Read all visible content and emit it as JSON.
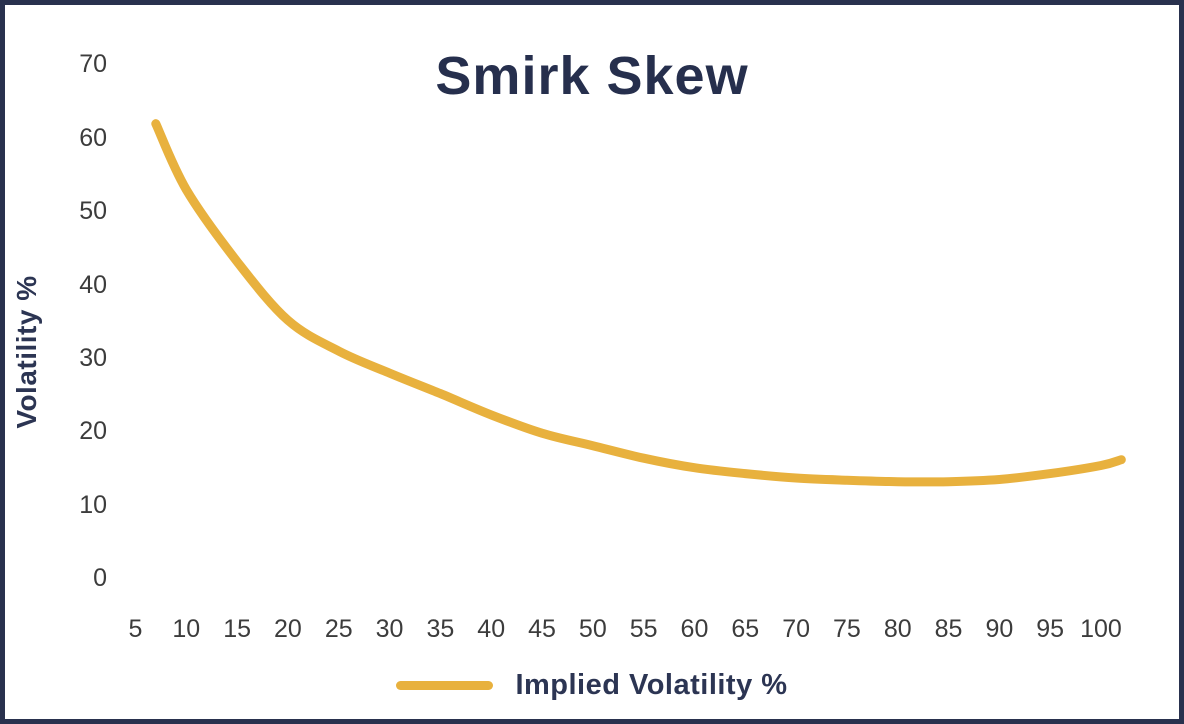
{
  "chart": {
    "title": "Smirk Skew",
    "y_axis_label": "Volatility %",
    "legend": {
      "label": "Implied Volatility %"
    },
    "colors": {
      "line": "#E8B13E",
      "navy_text": "#262F4D",
      "tick_text": "#3C3C3C",
      "border": "#29314E",
      "background": "#FFFFFF"
    }
  },
  "chart_data": {
    "type": "line",
    "title": "Smirk Skew",
    "xlabel": "",
    "ylabel": "Volatility %",
    "x_ticks": [
      5,
      10,
      15,
      20,
      25,
      30,
      35,
      40,
      45,
      50,
      55,
      60,
      65,
      70,
      75,
      80,
      85,
      90,
      95,
      100
    ],
    "y_ticks": [
      70,
      60,
      50,
      40,
      30,
      20,
      10,
      0
    ],
    "xlim": [
      5,
      100
    ],
    "ylim": [
      0,
      70
    ],
    "grid": false,
    "legend_position": "bottom",
    "series": [
      {
        "name": "Implied Volatility %",
        "color": "#E8B13E",
        "points": [
          [
            7,
            62
          ],
          [
            10,
            53
          ],
          [
            15,
            43.2
          ],
          [
            20,
            35.2
          ],
          [
            25,
            31
          ],
          [
            30,
            28
          ],
          [
            35,
            25.2
          ],
          [
            40,
            22.3
          ],
          [
            45,
            19.8
          ],
          [
            50,
            18.1
          ],
          [
            55,
            16.4
          ],
          [
            60,
            15.1
          ],
          [
            65,
            14.3
          ],
          [
            70,
            13.7
          ],
          [
            75,
            13.4
          ],
          [
            80,
            13.2
          ],
          [
            85,
            13.2
          ],
          [
            90,
            13.5
          ],
          [
            95,
            14.3
          ],
          [
            100,
            15.4
          ],
          [
            102,
            16.2
          ]
        ]
      }
    ]
  }
}
